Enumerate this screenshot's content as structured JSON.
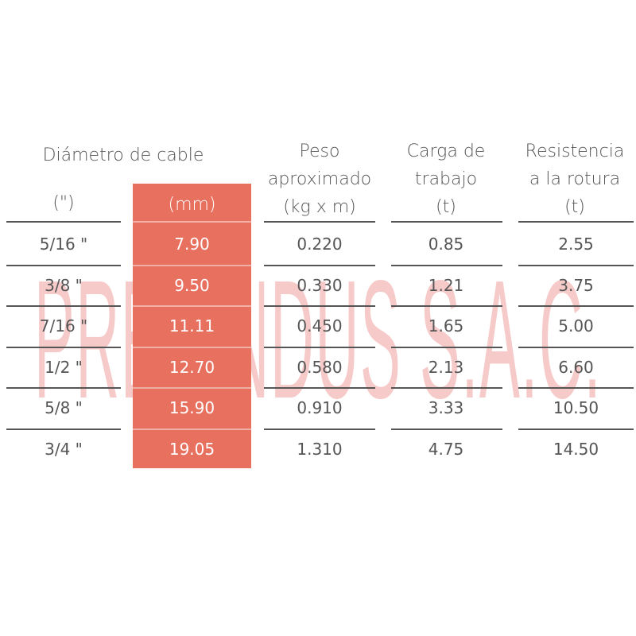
{
  "watermark": "PRECINDUS S.A.C.",
  "headers": {
    "diameter_group": "Diámetro de cable",
    "inches": "(\")",
    "mm": "(mm)",
    "weight": [
      "Peso",
      "aproximado",
      "(kg x m)"
    ],
    "work_load": [
      "Carga de",
      "trabajo",
      "(t)"
    ],
    "breaking": [
      "Resistencia",
      "a la rotura",
      "(t)"
    ]
  },
  "rows": [
    {
      "in": "5/16 \"",
      "mm": "7.90",
      "weight": "0.220",
      "load": "0.85",
      "break": "2.55"
    },
    {
      "in": "3/8 \"",
      "mm": "9.50",
      "weight": "0.330",
      "load": "1.21",
      "break": "3.75"
    },
    {
      "in": "7/16 \"",
      "mm": "11.11",
      "weight": "0.450",
      "load": "1.65",
      "break": "5.00"
    },
    {
      "in": "1/2 \"",
      "mm": "12.70",
      "weight": "0.580",
      "load": "2.13",
      "break": "6.60"
    },
    {
      "in": "5/8 \"",
      "mm": "15.90",
      "weight": "0.910",
      "load": "3.33",
      "break": "10.50"
    },
    {
      "in": "3/4 \"",
      "mm": "19.05",
      "weight": "1.310",
      "load": "4.75",
      "break": "14.50"
    }
  ],
  "colors": {
    "accent": "#e8705f",
    "text": "#555555",
    "watermark": "#f7caca"
  }
}
